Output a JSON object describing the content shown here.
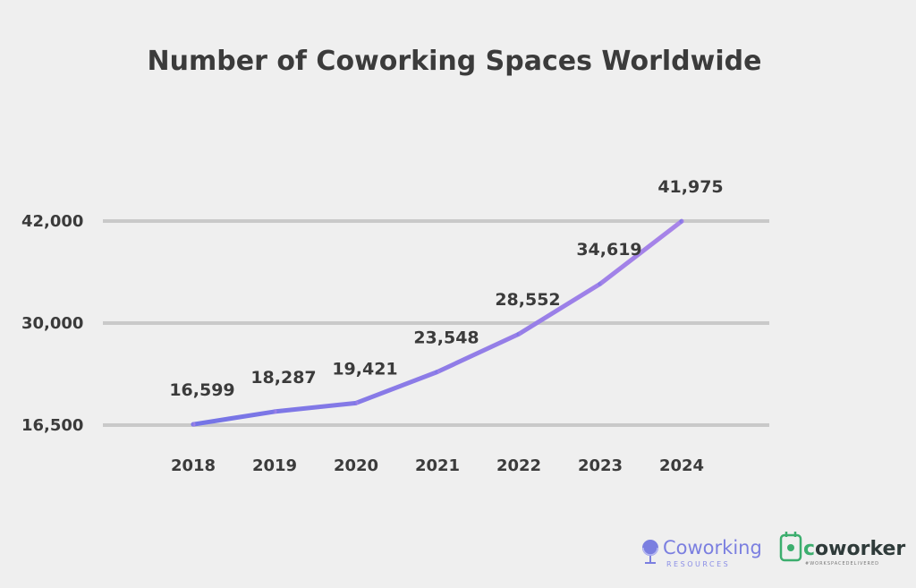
{
  "chart_data": {
    "type": "line",
    "title": "Number of Coworking Spaces Worldwide",
    "categories": [
      "2018",
      "2019",
      "2020",
      "2021",
      "2022",
      "2023",
      "2024"
    ],
    "values": [
      16599,
      18287,
      19421,
      23548,
      28552,
      34619,
      41975
    ],
    "data_labels": [
      "16,599",
      "18,287",
      "19,421",
      "23,548",
      "28,552",
      "34,619",
      "41,975"
    ],
    "y_ticks": [
      16500,
      30000,
      42000
    ],
    "y_tick_labels": [
      "16,500",
      "30,000",
      "42,000"
    ],
    "grid": true,
    "legend": "none",
    "line_color_start": "#7474e6",
    "line_color_end": "#a884e8"
  },
  "branding": {
    "logo1_name": "Coworking",
    "logo1_sub": "RESOURCES",
    "logo2_name": "coworker",
    "logo2_sub": "#WORKSPACEDELIVERED",
    "logo1_icon": "globe-icon",
    "logo2_icon": "plug-pin-icon"
  }
}
